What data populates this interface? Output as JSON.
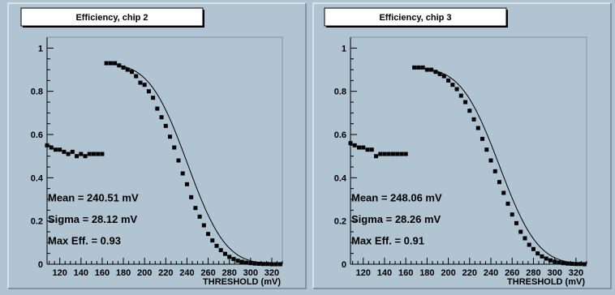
{
  "chart_data": [
    {
      "type": "scatter",
      "title": "Efficiency, chip 2",
      "xlabel": "THRESHOLD (mV)",
      "ylabel": "",
      "xlim": [
        108,
        330
      ],
      "ylim": [
        0,
        1.05
      ],
      "x_ticks": [
        120,
        140,
        160,
        180,
        200,
        220,
        240,
        260,
        280,
        300,
        320
      ],
      "y_ticks": [
        0,
        0.2,
        0.4,
        0.6,
        0.8,
        1
      ],
      "y_tick_labels": [
        "0",
        "0.2",
        "0.4",
        "0.6",
        "0.8",
        "1"
      ],
      "annotations": [
        "Mean = 240.51 mV",
        "Sigma = 28.12 mV",
        "Max Eff. = 0.93"
      ],
      "fit": {
        "mean": 240.51,
        "sigma": 28.12,
        "max_eff": 0.93
      },
      "points": {
        "x": [
          108,
          112,
          116,
          120,
          124,
          128,
          132,
          136,
          140,
          144,
          148,
          152,
          156,
          160,
          164,
          168,
          172,
          176,
          180,
          184,
          188,
          192,
          196,
          200,
          204,
          208,
          212,
          216,
          220,
          224,
          228,
          232,
          236,
          240,
          244,
          248,
          252,
          256,
          260,
          264,
          268,
          272,
          276,
          280,
          284,
          288,
          292,
          296,
          300,
          304,
          308,
          312,
          316,
          320,
          324,
          328
        ],
        "y": [
          0.55,
          0.54,
          0.53,
          0.53,
          0.52,
          0.51,
          0.52,
          0.5,
          0.51,
          0.5,
          0.51,
          0.51,
          0.51,
          0.51,
          0.93,
          0.93,
          0.93,
          0.92,
          0.91,
          0.9,
          0.89,
          0.87,
          0.84,
          0.83,
          0.8,
          0.77,
          0.72,
          0.68,
          0.64,
          0.59,
          0.54,
          0.48,
          0.42,
          0.37,
          0.31,
          0.26,
          0.22,
          0.18,
          0.14,
          0.11,
          0.085,
          0.065,
          0.048,
          0.034,
          0.024,
          0.016,
          0.011,
          0.007,
          0.005,
          0.003,
          0.002,
          0.001,
          0.001,
          0.0,
          0.0,
          0.0
        ]
      }
    },
    {
      "type": "scatter",
      "title": "Efficiency, chip 3",
      "xlabel": "THRESHOLD (mV)",
      "ylabel": "",
      "xlim": [
        108,
        330
      ],
      "ylim": [
        0,
        1.05
      ],
      "x_ticks": [
        120,
        140,
        160,
        180,
        200,
        220,
        240,
        260,
        280,
        300,
        320
      ],
      "y_ticks": [
        0,
        0.2,
        0.4,
        0.6,
        0.8,
        1
      ],
      "y_tick_labels": [
        "0",
        "0.2",
        "0.4",
        "0.6",
        "0.8",
        "1"
      ],
      "annotations": [
        "Mean = 248.06 mV",
        "Sigma = 28.26 mV",
        "Max Eff. = 0.91"
      ],
      "fit": {
        "mean": 248.06,
        "sigma": 28.26,
        "max_eff": 0.91
      },
      "points": {
        "x": [
          108,
          112,
          116,
          120,
          124,
          128,
          132,
          136,
          140,
          144,
          148,
          152,
          156,
          160,
          168,
          172,
          176,
          180,
          184,
          188,
          192,
          196,
          200,
          204,
          208,
          212,
          216,
          220,
          224,
          228,
          232,
          236,
          240,
          244,
          248,
          252,
          256,
          260,
          264,
          268,
          272,
          276,
          280,
          284,
          288,
          292,
          296,
          300,
          304,
          308,
          312,
          316,
          320,
          324,
          328
        ],
        "y": [
          0.56,
          0.55,
          0.54,
          0.54,
          0.53,
          0.53,
          0.5,
          0.51,
          0.51,
          0.51,
          0.51,
          0.51,
          0.51,
          0.51,
          0.91,
          0.91,
          0.91,
          0.9,
          0.9,
          0.89,
          0.88,
          0.87,
          0.85,
          0.83,
          0.81,
          0.78,
          0.75,
          0.71,
          0.67,
          0.63,
          0.58,
          0.53,
          0.48,
          0.43,
          0.38,
          0.33,
          0.28,
          0.23,
          0.19,
          0.15,
          0.12,
          0.09,
          0.07,
          0.05,
          0.036,
          0.026,
          0.018,
          0.012,
          0.008,
          0.005,
          0.003,
          0.002,
          0.001,
          0.001,
          0.0
        ]
      }
    }
  ]
}
